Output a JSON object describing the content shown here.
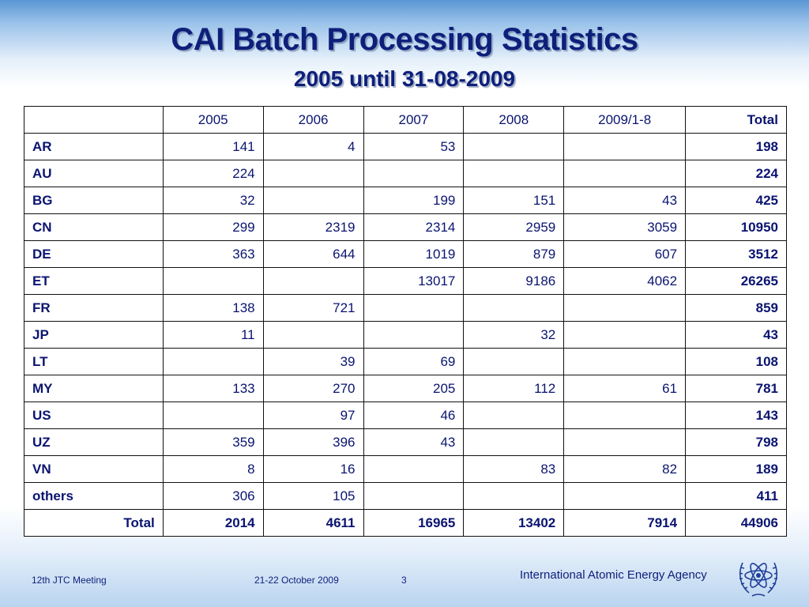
{
  "slide": {
    "title": "CAI Batch Processing Statistics",
    "subtitle": "2005 until 31-08-2009"
  },
  "table": {
    "header": [
      "",
      "2005",
      "2006",
      "2007",
      "2008",
      "2009/1-8",
      "Total"
    ],
    "rows": [
      [
        "AR",
        "141",
        "4",
        "53",
        "",
        "",
        "198"
      ],
      [
        "AU",
        "224",
        "",
        "",
        "",
        "",
        "224"
      ],
      [
        "BG",
        "32",
        "",
        "199",
        "151",
        "43",
        "425"
      ],
      [
        "CN",
        "299",
        "2319",
        "2314",
        "2959",
        "3059",
        "10950"
      ],
      [
        "DE",
        "363",
        "644",
        "1019",
        "879",
        "607",
        "3512"
      ],
      [
        "ET",
        "",
        "",
        "13017",
        "9186",
        "4062",
        "26265"
      ],
      [
        "FR",
        "138",
        "721",
        "",
        "",
        "",
        "859"
      ],
      [
        "JP",
        "11",
        "",
        "",
        "32",
        "",
        "43"
      ],
      [
        "LT",
        "",
        "39",
        "69",
        "",
        "",
        "108"
      ],
      [
        "MY",
        "133",
        "270",
        "205",
        "112",
        "61",
        "781"
      ],
      [
        "US",
        "",
        "97",
        "46",
        "",
        "",
        "143"
      ],
      [
        "UZ",
        "359",
        "396",
        "43",
        "",
        "",
        "798"
      ],
      [
        "VN",
        "8",
        "16",
        "",
        "83",
        "82",
        "189"
      ],
      [
        "others",
        "306",
        "105",
        "",
        "",
        "",
        "411"
      ]
    ],
    "total_row": [
      "Total",
      "2014",
      "4611",
      "16965",
      "13402",
      "7914",
      "44906"
    ]
  },
  "footer": {
    "meeting": "12th JTC Meeting",
    "date": "21-22 October 2009",
    "page": "3",
    "agency": "International Atomic Energy Agency"
  },
  "icons": {
    "logo": "iaea-logo-icon"
  },
  "colors": {
    "text": "#0e1f7a",
    "table_text": "#0a1470",
    "background_top": "#5a96d4"
  }
}
